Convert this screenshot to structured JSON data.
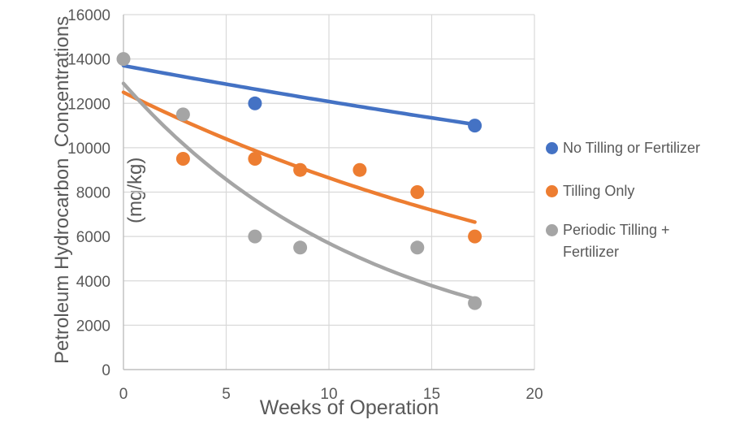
{
  "chart_data": {
    "type": "scatter",
    "title": "",
    "xlabel": "Weeks of Operation",
    "ylabel": "Petroleum Hydrocarbon  Concentrations (mg/kg)",
    "ylabel_line1": "Petroleum Hydrocarbon  Concentrations",
    "ylabel_line2": "(mg/kg)",
    "xlim": [
      0,
      20
    ],
    "ylim": [
      0,
      16000
    ],
    "x_ticks": [
      0,
      5,
      10,
      15,
      20
    ],
    "y_ticks": [
      0,
      2000,
      4000,
      6000,
      8000,
      10000,
      12000,
      14000,
      16000
    ],
    "grid": true,
    "legend_position": "right",
    "colors": {
      "grid": "#D9D9D9",
      "axis": "#BFBFBF",
      "text": "#595959"
    },
    "series": [
      {
        "name": "No Tilling or Fertilizer",
        "color": "#4472C4",
        "marker": "circle",
        "points": [
          [
            6.4,
            12000
          ],
          [
            17.1,
            11000
          ]
        ],
        "trendline": {
          "type": "exponential",
          "x_start": 0,
          "y_start": 13700,
          "x_end": 17.1,
          "y_end": 11050
        }
      },
      {
        "name": "Tilling Only",
        "color": "#ED7D31",
        "marker": "circle",
        "points": [
          [
            2.9,
            9500
          ],
          [
            6.4,
            9500
          ],
          [
            8.6,
            9000
          ],
          [
            11.5,
            9000
          ],
          [
            14.3,
            8000
          ],
          [
            17.1,
            6000
          ]
        ],
        "trendline": {
          "type": "exponential",
          "x_start": 0,
          "y_start": 12500,
          "x_end": 17.1,
          "y_end": 6650
        }
      },
      {
        "name": "Periodic Tilling + Fertilizer",
        "color": "#A5A5A5",
        "marker": "circle",
        "points": [
          [
            0,
            14000
          ],
          [
            2.9,
            11500
          ],
          [
            6.4,
            6000
          ],
          [
            8.6,
            5500
          ],
          [
            14.3,
            5500
          ],
          [
            17.1,
            3000
          ]
        ],
        "trendline": {
          "type": "exponential",
          "x_start": 0,
          "y_start": 12900,
          "x_end": 17.05,
          "y_end": 3200
        }
      }
    ]
  }
}
